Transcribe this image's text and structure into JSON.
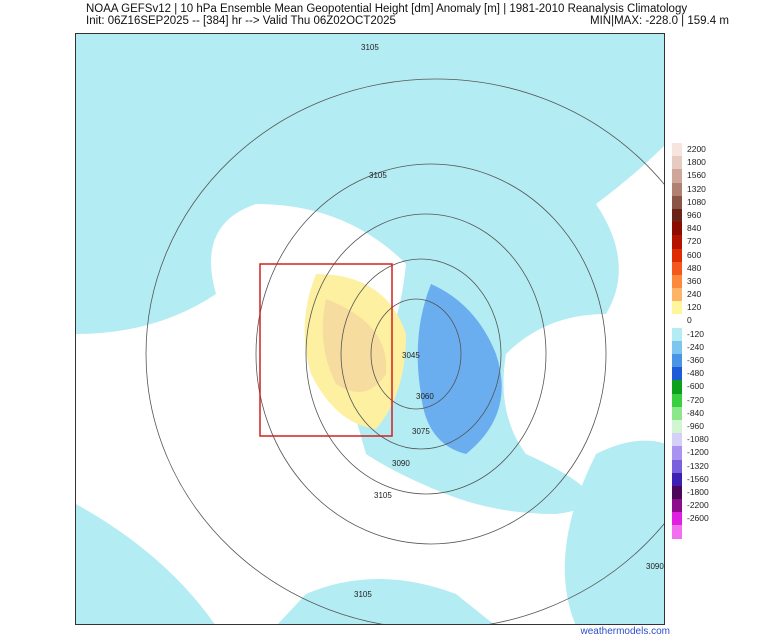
{
  "header": {
    "title": "NOAA GEFSv12 | 10 hPa Ensemble Mean Geopotential Height [dm] Anomaly [m] | 1981-2010 Reanalysis Climatology",
    "init": "Init: 06Z16SEP2025 -- [384] hr --> Valid Thu 06Z02OCT2025",
    "minmax": "MIN|MAX: -228.0 | 159.4 m"
  },
  "contour_labels": [
    "3105",
    "3105",
    "3045",
    "3060",
    "3075",
    "3090",
    "3105",
    "3090",
    "3105"
  ],
  "colorbar": [
    {
      "label": "2200",
      "color": "#f7e4de"
    },
    {
      "label": "1800",
      "color": "#e6cbc0"
    },
    {
      "label": "1560",
      "color": "#cfa79a"
    },
    {
      "label": "1320",
      "color": "#b08072"
    },
    {
      "label": "1080",
      "color": "#8a5446"
    },
    {
      "label": "960",
      "color": "#6b2418"
    },
    {
      "label": "840",
      "color": "#8c0c00"
    },
    {
      "label": "720",
      "color": "#b31400"
    },
    {
      "label": "600",
      "color": "#dc2c00"
    },
    {
      "label": "480",
      "color": "#f4581c"
    },
    {
      "label": "360",
      "color": "#fb8a3c"
    },
    {
      "label": "240",
      "color": "#fdb466"
    },
    {
      "label": "120",
      "color": "#fff59a"
    },
    {
      "label": "0",
      "color": "#ffffff"
    },
    {
      "label": "-120",
      "color": "#b4ecf4"
    },
    {
      "label": "-240",
      "color": "#7cc6f0"
    },
    {
      "label": "-360",
      "color": "#4a94e6"
    },
    {
      "label": "-480",
      "color": "#1c5cd8"
    },
    {
      "label": "-600",
      "color": "#0ca01c"
    },
    {
      "label": "-720",
      "color": "#38d040"
    },
    {
      "label": "-840",
      "color": "#8ce68c"
    },
    {
      "label": "-960",
      "color": "#d2f6d2"
    },
    {
      "label": "-1080",
      "color": "#d4d0f8"
    },
    {
      "label": "-1200",
      "color": "#a894f0"
    },
    {
      "label": "-1320",
      "color": "#7a60dc"
    },
    {
      "label": "-1560",
      "color": "#3c20b4"
    },
    {
      "label": "-1800",
      "color": "#4c0858"
    },
    {
      "label": "-2200",
      "color": "#8c0c8c"
    },
    {
      "label": "-2600",
      "color": "#e020e0"
    },
    {
      "label": "",
      "color": "#f070f0"
    }
  ],
  "footer": "weathermodels.com",
  "colors": {
    "neg_anom": "#b4ecf4",
    "neg_strong": "#4a94e6",
    "pos_anom": "#fdf0a0",
    "box": "#d42020"
  }
}
